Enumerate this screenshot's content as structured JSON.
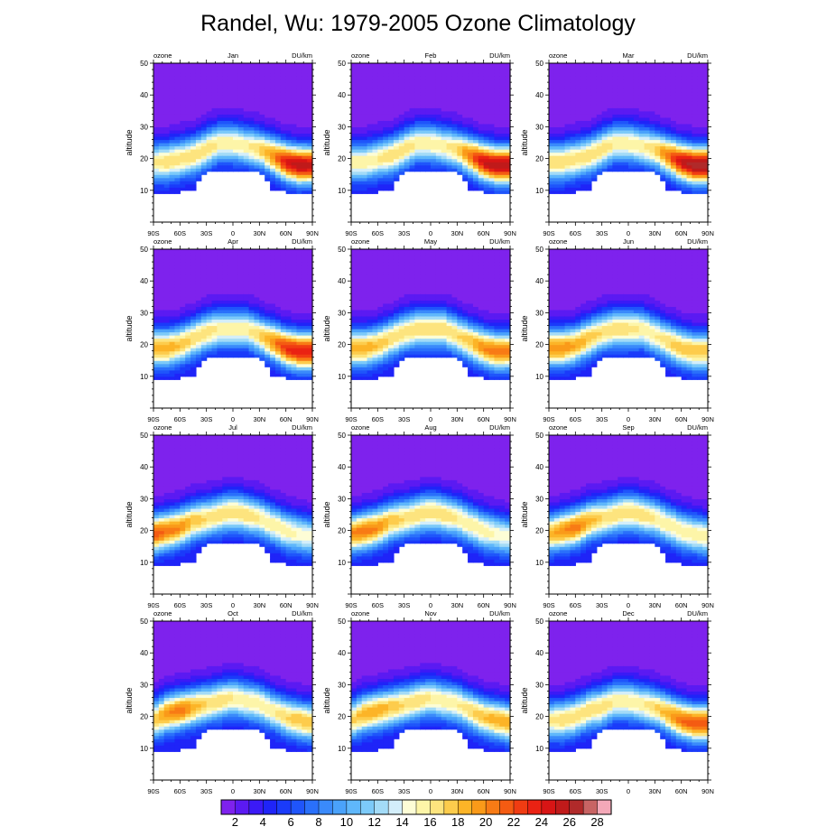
{
  "title": "Randel, Wu: 1979-2005 Ozone Climatology",
  "chart_data": [
    {
      "type": "heatmap",
      "title": "Jan",
      "left_string": "ozone",
      "right_string": "DU/km",
      "ylabel": "altitude",
      "ylim": [
        0,
        50
      ],
      "yticks": [
        10,
        20,
        30,
        40,
        50
      ],
      "xlim": [
        -90,
        90
      ],
      "xticks": [
        "90S",
        "60S",
        "30S",
        "0",
        "30N",
        "60N",
        "90N"
      ],
      "peak_altitude_km": [
        19,
        19,
        20,
        21,
        23,
        25,
        25,
        24,
        23,
        21,
        19,
        18,
        18
      ],
      "peak_value_du_per_km": [
        16,
        17,
        17,
        17,
        17,
        16,
        16,
        16,
        17,
        20,
        24,
        26,
        25
      ]
    },
    {
      "type": "heatmap",
      "title": "Feb",
      "left_string": "ozone",
      "right_string": "DU/km",
      "ylabel": "altitude",
      "ylim": [
        0,
        50
      ],
      "yticks": [
        10,
        20,
        30,
        40,
        50
      ],
      "xlim": [
        -90,
        90
      ],
      "xticks": [
        "90S",
        "60S",
        "30S",
        "0",
        "30N",
        "60N",
        "90N"
      ],
      "peak_altitude_km": [
        19,
        19,
        20,
        21,
        23,
        25,
        25,
        24,
        23,
        21,
        19,
        18,
        18
      ],
      "peak_value_du_per_km": [
        16,
        16,
        16,
        17,
        17,
        16,
        16,
        16,
        17,
        21,
        25,
        26,
        26
      ]
    },
    {
      "type": "heatmap",
      "title": "Mar",
      "left_string": "ozone",
      "right_string": "DU/km",
      "ylabel": "altitude",
      "ylim": [
        0,
        50
      ],
      "yticks": [
        10,
        20,
        30,
        40,
        50
      ],
      "xlim": [
        -90,
        90
      ],
      "xticks": [
        "90S",
        "60S",
        "30S",
        "0",
        "30N",
        "60N",
        "90N"
      ],
      "peak_altitude_km": [
        19,
        19,
        20,
        21,
        23,
        25,
        25,
        24,
        23,
        21,
        19,
        18,
        18
      ],
      "peak_value_du_per_km": [
        17,
        17,
        17,
        17,
        17,
        16,
        16,
        16,
        17,
        21,
        25,
        27,
        27
      ]
    },
    {
      "type": "heatmap",
      "title": "Apr",
      "left_string": "ozone",
      "right_string": "DU/km",
      "ylabel": "altitude",
      "ylim": [
        0,
        50
      ],
      "yticks": [
        10,
        20,
        30,
        40,
        50
      ],
      "xlim": [
        -90,
        90
      ],
      "xticks": [
        "90S",
        "60S",
        "30S",
        "0",
        "30N",
        "60N",
        "90N"
      ],
      "peak_altitude_km": [
        19,
        19,
        20,
        22,
        24,
        25,
        25,
        25,
        23,
        21,
        19,
        18,
        18
      ],
      "peak_value_du_per_km": [
        19,
        19,
        18,
        17,
        17,
        16,
        16,
        16,
        17,
        20,
        23,
        24,
        24
      ]
    },
    {
      "type": "heatmap",
      "title": "May",
      "left_string": "ozone",
      "right_string": "DU/km",
      "ylabel": "altitude",
      "ylim": [
        0,
        50
      ],
      "yticks": [
        10,
        20,
        30,
        40,
        50
      ],
      "xlim": [
        -90,
        90
      ],
      "xticks": [
        "90S",
        "60S",
        "30S",
        "0",
        "30N",
        "60N",
        "90N"
      ],
      "peak_altitude_km": [
        19,
        19,
        20,
        22,
        24,
        25,
        25,
        25,
        23,
        21,
        19,
        18,
        18
      ],
      "peak_value_du_per_km": [
        19,
        19,
        18,
        17,
        17,
        17,
        17,
        17,
        17,
        18,
        20,
        21,
        20
      ]
    },
    {
      "type": "heatmap",
      "title": "Jun",
      "left_string": "ozone",
      "right_string": "DU/km",
      "ylabel": "altitude",
      "ylim": [
        0,
        50
      ],
      "yticks": [
        10,
        20,
        30,
        40,
        50
      ],
      "xlim": [
        -90,
        90
      ],
      "xticks": [
        "90S",
        "60S",
        "30S",
        "0",
        "30N",
        "60N",
        "90N"
      ],
      "peak_altitude_km": [
        19,
        19,
        20,
        22,
        24,
        25,
        25,
        25,
        23,
        21,
        19,
        18,
        18
      ],
      "peak_value_du_per_km": [
        20,
        20,
        19,
        18,
        17,
        17,
        17,
        16,
        16,
        17,
        18,
        18,
        18
      ]
    },
    {
      "type": "heatmap",
      "title": "Jul",
      "left_string": "ozone",
      "right_string": "DU/km",
      "ylabel": "altitude",
      "ylim": [
        0,
        50
      ],
      "yticks": [
        10,
        20,
        30,
        40,
        50
      ],
      "xlim": [
        -90,
        90
      ],
      "xticks": [
        "90S",
        "60S",
        "30S",
        "0",
        "30N",
        "60N",
        "90N"
      ],
      "peak_altitude_km": [
        19,
        20,
        21,
        23,
        24,
        25,
        26,
        25,
        24,
        22,
        20,
        19,
        18
      ],
      "peak_value_du_per_km": [
        22,
        21,
        20,
        18,
        17,
        17,
        17,
        17,
        16,
        16,
        16,
        15,
        15
      ]
    },
    {
      "type": "heatmap",
      "title": "Aug",
      "left_string": "ozone",
      "right_string": "DU/km",
      "ylabel": "altitude",
      "ylim": [
        0,
        50
      ],
      "yticks": [
        10,
        20,
        30,
        40,
        50
      ],
      "xlim": [
        -90,
        90
      ],
      "xticks": [
        "90S",
        "60S",
        "30S",
        "0",
        "30N",
        "60N",
        "90N"
      ],
      "peak_altitude_km": [
        19,
        20,
        21,
        23,
        24,
        25,
        26,
        25,
        24,
        22,
        20,
        19,
        18
      ],
      "peak_value_du_per_km": [
        20,
        21,
        20,
        18,
        17,
        17,
        17,
        17,
        16,
        16,
        16,
        15,
        15
      ]
    },
    {
      "type": "heatmap",
      "title": "Sep",
      "left_string": "ozone",
      "right_string": "DU/km",
      "ylabel": "altitude",
      "ylim": [
        0,
        50
      ],
      "yticks": [
        10,
        20,
        30,
        40,
        50
      ],
      "xlim": [
        -90,
        90
      ],
      "xticks": [
        "90S",
        "60S",
        "30S",
        "0",
        "30N",
        "60N",
        "90N"
      ],
      "peak_altitude_km": [
        19,
        20,
        21,
        23,
        24,
        25,
        26,
        25,
        24,
        22,
        20,
        19,
        18
      ],
      "peak_value_du_per_km": [
        18,
        20,
        21,
        19,
        17,
        17,
        17,
        17,
        16,
        16,
        16,
        16,
        16
      ]
    },
    {
      "type": "heatmap",
      "title": "Oct",
      "left_string": "ozone",
      "right_string": "DU/km",
      "ylabel": "altitude",
      "ylim": [
        0,
        50
      ],
      "yticks": [
        10,
        20,
        30,
        40,
        50
      ],
      "xlim": [
        -90,
        90
      ],
      "xticks": [
        "90S",
        "60S",
        "30S",
        "0",
        "30N",
        "60N",
        "90N"
      ],
      "peak_altitude_km": [
        19,
        21,
        22,
        23,
        24,
        25,
        26,
        25,
        24,
        22,
        20,
        19,
        18
      ],
      "peak_value_du_per_km": [
        17,
        20,
        21,
        19,
        17,
        17,
        16,
        16,
        16,
        16,
        17,
        18,
        18
      ]
    },
    {
      "type": "heatmap",
      "title": "Nov",
      "left_string": "ozone",
      "right_string": "DU/km",
      "ylabel": "altitude",
      "ylim": [
        0,
        50
      ],
      "yticks": [
        10,
        20,
        30,
        40,
        50
      ],
      "xlim": [
        -90,
        90
      ],
      "xticks": [
        "90S",
        "60S",
        "30S",
        "0",
        "30N",
        "60N",
        "90N"
      ],
      "peak_altitude_km": [
        19,
        21,
        22,
        23,
        24,
        25,
        26,
        25,
        24,
        22,
        20,
        19,
        18
      ],
      "peak_value_du_per_km": [
        17,
        19,
        19,
        18,
        17,
        17,
        16,
        16,
        16,
        17,
        18,
        19,
        19
      ]
    },
    {
      "type": "heatmap",
      "title": "Dec",
      "left_string": "ozone",
      "right_string": "DU/km",
      "ylabel": "altitude",
      "ylim": [
        0,
        50
      ],
      "yticks": [
        10,
        20,
        30,
        40,
        50
      ],
      "xlim": [
        -90,
        90
      ],
      "xticks": [
        "90S",
        "60S",
        "30S",
        "0",
        "30N",
        "60N",
        "90N"
      ],
      "peak_altitude_km": [
        19,
        19,
        20,
        22,
        23,
        25,
        25,
        24,
        23,
        21,
        19,
        18,
        18
      ],
      "peak_value_du_per_km": [
        16,
        17,
        17,
        17,
        17,
        16,
        16,
        16,
        17,
        19,
        21,
        22,
        22
      ]
    }
  ],
  "colorbar": {
    "labels": [
      "2",
      "4",
      "6",
      "8",
      "10",
      "12",
      "14",
      "16",
      "18",
      "20",
      "22",
      "24",
      "26",
      "28"
    ],
    "colors": [
      "#7e22ed",
      "#5b1af2",
      "#3b1af6",
      "#1f24f8",
      "#1a3bfa",
      "#1f55fb",
      "#2a70fb",
      "#3a8afb",
      "#4aa2fb",
      "#5fb7fb",
      "#7ccaf9",
      "#a3dbf7",
      "#d3eefa",
      "#fdfdd6",
      "#fdf5a8",
      "#fde47e",
      "#fdcc4c",
      "#fcb427",
      "#fa9a19",
      "#f87b15",
      "#f45b12",
      "#f03c12",
      "#ea2213",
      "#d81515",
      "#c01a1a",
      "#b02a2a",
      "#c86464",
      "#f4a8b8"
    ]
  }
}
